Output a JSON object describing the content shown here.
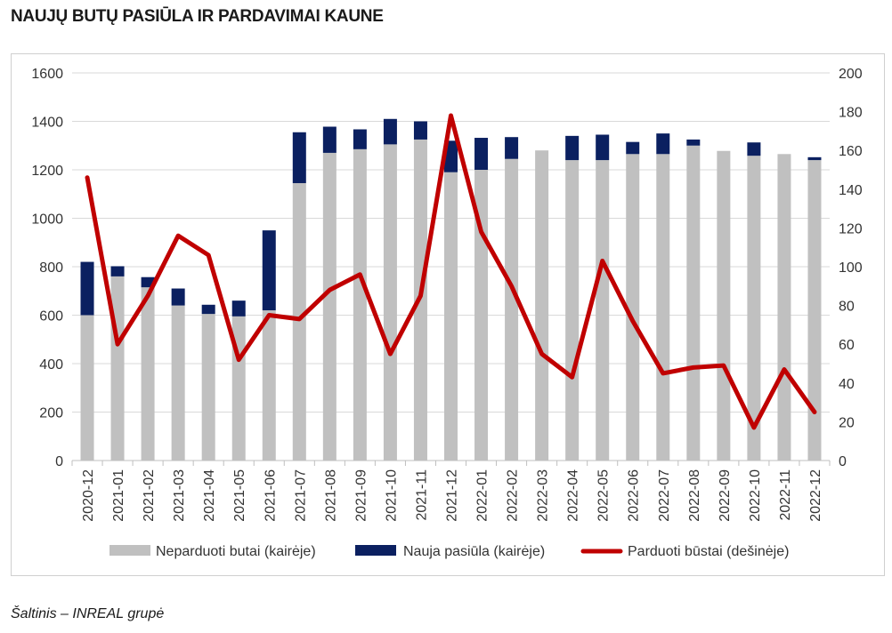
{
  "title": "NAUJŲ BUTŲ PASIŪLA IR PARDAVIMAI KAUNE",
  "source": "Šaltinis – INREAL grupė",
  "colors": {
    "unsold": "#c0c0c0",
    "new_supply": "#0b2060",
    "sold": "#c00000",
    "grid": "#d9d9d9"
  },
  "chart_data": {
    "type": "bar",
    "stacked": true,
    "categories": [
      "2020-12",
      "2021-01",
      "2021-02",
      "2021-03",
      "2021-04",
      "2021-05",
      "2021-06",
      "2021-07",
      "2021-08",
      "2021-09",
      "2021-10",
      "2021-11",
      "2021-12",
      "2022-01",
      "2022-02",
      "2022-03",
      "2022-04",
      "2022-05",
      "2022-06",
      "2022-07",
      "2022-08",
      "2022-09",
      "2022-10",
      "2022-11",
      "2022-12"
    ],
    "series": [
      {
        "name": "Neparduoti butai (kairėje)",
        "type": "bar",
        "axis": "left",
        "values": [
          600,
          760,
          715,
          640,
          605,
          595,
          620,
          1145,
          1270,
          1285,
          1305,
          1325,
          1190,
          1200,
          1245,
          1280,
          1240,
          1240,
          1265,
          1265,
          1300,
          1278,
          1258,
          1265,
          1240
        ]
      },
      {
        "name": "Nauja pasiūla (kairėje)",
        "type": "bar",
        "axis": "left",
        "values": [
          220,
          42,
          42,
          70,
          38,
          65,
          330,
          210,
          108,
          82,
          105,
          75,
          130,
          132,
          90,
          0,
          100,
          105,
          50,
          85,
          25,
          0,
          55,
          0,
          12
        ]
      },
      {
        "name": "Parduoti būstai (dešinėje)",
        "type": "line",
        "axis": "right",
        "values": [
          146,
          60,
          85,
          116,
          106,
          52,
          75,
          73,
          88,
          96,
          55,
          85,
          178,
          118,
          90,
          55,
          43,
          103,
          72,
          45,
          48,
          49,
          17,
          47,
          25
        ]
      }
    ],
    "y_left": {
      "min": 0,
      "max": 1600,
      "ticks": [
        "0",
        "200",
        "400",
        "600",
        "800",
        "1000",
        "1200",
        "1400",
        "1600"
      ]
    },
    "y_right": {
      "min": 0,
      "max": 200,
      "ticks": [
        "0",
        "20",
        "40",
        "60",
        "80",
        "100",
        "120",
        "140",
        "160",
        "180",
        "200"
      ]
    },
    "grid": true,
    "legend_position": "bottom"
  }
}
